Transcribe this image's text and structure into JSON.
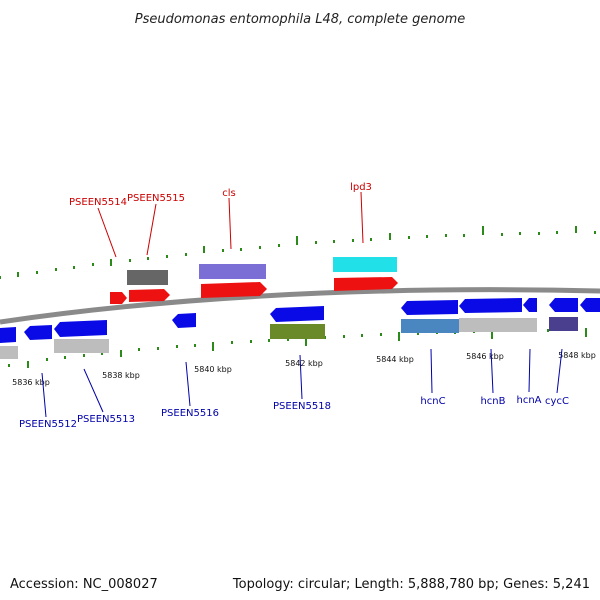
{
  "title": "Pseudomonas entomophila L48, complete genome",
  "accession": "Accession: NC_008027",
  "topology": "Topology: circular; Length: 5,888,780 bp; Genes: 5,241",
  "ticks": [
    "5836 kbp",
    "5838 kbp",
    "5840 kbp",
    "5842 kbp",
    "5844 kbp",
    "5846 kbp",
    "5848 kbp"
  ],
  "labels_top": [
    "PSEEN5514",
    "PSEEN5515",
    "cls",
    "lpd3"
  ],
  "labels_bottom": [
    "PSEEN5512",
    "PSEEN5513",
    "PSEEN5516",
    "PSEEN5518",
    "hcnC",
    "hcnB",
    "hcnA",
    "cycC"
  ],
  "colors": {
    "backbone": "#8a8a8a",
    "tick_green": "#2a8a1a",
    "cds_blue": "#0a0ae6",
    "cds_red": "#ee1111",
    "gray": "#666666",
    "light_gray": "#bdbdbd",
    "purple": "#7b6fd6",
    "cyan": "#22e0e8",
    "olive": "#6a8a2a",
    "steel": "#4a86c0",
    "indigo": "#4a3f8f",
    "label_red": "#cc0000",
    "label_blue": "#0000aa"
  }
}
